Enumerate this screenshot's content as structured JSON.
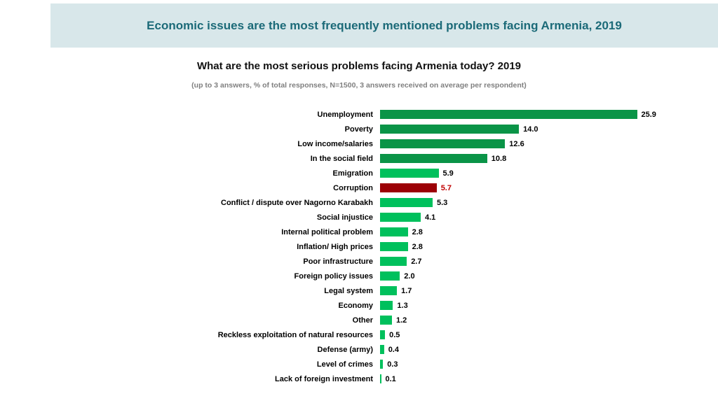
{
  "slide": {
    "header_title": "Economic issues are the most frequently mentioned problems facing Armenia, 2019"
  },
  "chart": {
    "title": "What are the most serious problems facing Armenia today? 2019",
    "subtitle": "(up to 3 answers, % of total responses, N=1500, 3 answers received on average per respondent)"
  },
  "chart_data": {
    "type": "bar",
    "orientation": "horizontal",
    "title": "What are the most serious problems facing Armenia today? 2019",
    "subtitle": "(up to 3 answers, % of total responses, N=1500, 3 answers received on average per respondent)",
    "categories": [
      "Unemployment",
      "Poverty",
      "Low income/salaries",
      "In the social field",
      "Emigration",
      "Corruption",
      "Conflict / dispute over Nagorno Karabakh",
      "Social injustice",
      "Internal political problem",
      "Inflation/ High prices",
      "Poor infrastructure",
      "Foreign policy issues",
      "Legal system",
      "Economy",
      "Other",
      "Reckless exploitation of natural resources",
      "Defense (army)",
      "Level of crimes",
      "Lack of foreign investment"
    ],
    "values": [
      25.9,
      14.0,
      12.6,
      10.8,
      5.9,
      5.7,
      5.3,
      4.1,
      2.8,
      2.8,
      2.7,
      2.0,
      1.7,
      1.3,
      1.2,
      0.5,
      0.4,
      0.3,
      0.1
    ],
    "bar_color_keys": [
      "dark_green",
      "dark_green",
      "dark_green",
      "dark_green",
      "bright_green",
      "dark_red",
      "bright_green",
      "bright_green",
      "bright_green",
      "bright_green",
      "bright_green",
      "bright_green",
      "bright_green",
      "bright_green",
      "bright_green",
      "bright_green",
      "bright_green",
      "bright_green",
      "bright_green"
    ],
    "value_color_keys": [
      "default",
      "default",
      "default",
      "default",
      "default",
      "red_label",
      "default",
      "default",
      "default",
      "default",
      "default",
      "default",
      "default",
      "default",
      "default",
      "default",
      "default",
      "default",
      "default"
    ],
    "palette": {
      "dark_green": "#0a9447",
      "bright_green": "#00c05c",
      "dark_red": "#9c0006",
      "red_label": "#c00000",
      "default": "#000000"
    },
    "xlim": [
      0,
      27
    ],
    "grid": false,
    "legend": "none",
    "value_labels": "outside-end"
  }
}
